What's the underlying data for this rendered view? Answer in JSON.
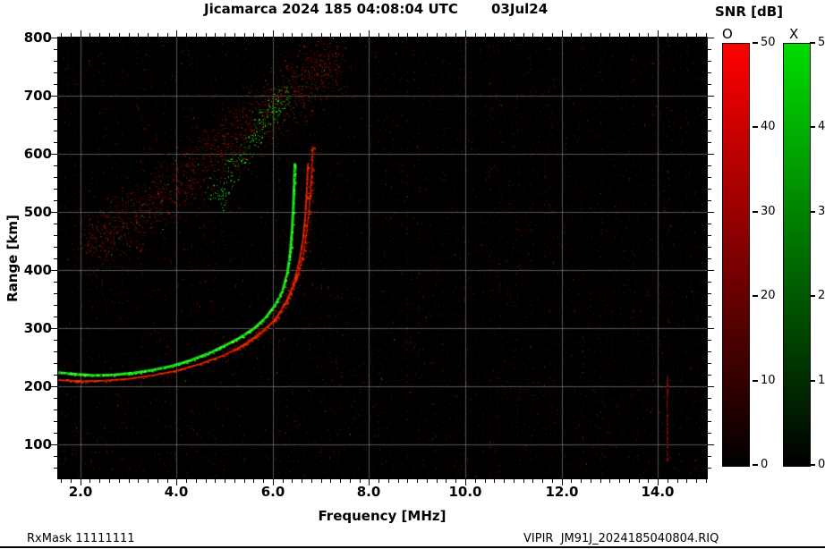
{
  "header": {
    "title": "Jicamarca 2024 185 04:08:04 UTC",
    "date": "03Jul24"
  },
  "footer": {
    "left": "RxMask 11111111",
    "right": "VIPIR  JM91J_2024185040804.RIQ"
  },
  "colorbar": {
    "title": "SNR [dB]",
    "o_label": "O",
    "x_label": "X",
    "min": 0,
    "max": 50,
    "ticks": [
      0,
      10,
      20,
      30,
      40,
      50
    ],
    "o_color": "#ff0000",
    "x_color": "#00dc00"
  },
  "chart_data": {
    "type": "heatmap",
    "title": "Jicamarca 2024 185 04:08:04 UTC  03Jul24",
    "xlabel": "Frequency [MHz]",
    "ylabel": "Range [km]",
    "xlim": [
      1.54,
      15.02
    ],
    "ylim": [
      42,
      800
    ],
    "x_major_ticks": [
      {
        "v": 2,
        "label": "2.0"
      },
      {
        "v": 4,
        "label": "4.0"
      },
      {
        "v": 6,
        "label": "6.0"
      },
      {
        "v": 8,
        "label": "8.0"
      },
      {
        "v": 10,
        "label": "10.0"
      },
      {
        "v": 12,
        "label": "12.0"
      },
      {
        "v": 14,
        "label": "14.0"
      }
    ],
    "x_minor_step": 0.2,
    "y_major_ticks": [
      {
        "v": 100,
        "label": "100"
      },
      {
        "v": 200,
        "label": "200"
      },
      {
        "v": 300,
        "label": "300"
      },
      {
        "v": 400,
        "label": "400"
      },
      {
        "v": 500,
        "label": "500"
      },
      {
        "v": 600,
        "label": "600"
      },
      {
        "v": 700,
        "label": "700"
      },
      {
        "v": 800,
        "label": "800"
      }
    ],
    "y_minor_step": 20,
    "grid": true,
    "grid_color": "rgba(145,145,145,0.6)",
    "bg": "#000000",
    "series": [
      {
        "name": "O-mode trace outer",
        "mode": "O",
        "color": "#b51700",
        "bright": "#ff3c00",
        "width": 1.6,
        "points": [
          [
            5.2,
            261
          ],
          [
            5.6,
            284
          ],
          [
            6.0,
            311
          ],
          [
            6.3,
            347
          ],
          [
            6.5,
            384
          ],
          [
            6.63,
            424
          ],
          [
            6.71,
            469
          ],
          [
            6.77,
            519
          ],
          [
            6.81,
            568
          ],
          [
            6.83,
            612
          ]
        ]
      },
      {
        "name": "O-mode trace main",
        "mode": "O",
        "color": "#d81e00",
        "bright": "#ff3c00",
        "width": 2,
        "points": [
          [
            1.54,
            211
          ],
          [
            2.0,
            209
          ],
          [
            2.5,
            210
          ],
          [
            3.0,
            213
          ],
          [
            3.5,
            219
          ],
          [
            4.0,
            227
          ],
          [
            4.5,
            239
          ],
          [
            5.0,
            254
          ],
          [
            5.4,
            271
          ],
          [
            5.8,
            294
          ],
          [
            6.1,
            320
          ],
          [
            6.3,
            349
          ],
          [
            6.45,
            381
          ],
          [
            6.55,
            414
          ],
          [
            6.63,
            453
          ],
          [
            6.68,
            498
          ],
          [
            6.71,
            543
          ],
          [
            6.73,
            582
          ]
        ]
      },
      {
        "name": "X-mode trace",
        "mode": "X",
        "color": "#15e515",
        "bright": "#62ff4e",
        "width": 3,
        "points": [
          [
            1.54,
            224
          ],
          [
            1.9,
            221
          ],
          [
            2.3,
            219
          ],
          [
            2.7,
            220
          ],
          [
            3.1,
            223
          ],
          [
            3.5,
            228
          ],
          [
            3.9,
            235
          ],
          [
            4.3,
            245
          ],
          [
            4.7,
            258
          ],
          [
            5.0,
            270
          ],
          [
            5.3,
            283
          ],
          [
            5.6,
            299
          ],
          [
            5.85,
            318
          ],
          [
            6.05,
            340
          ],
          [
            6.2,
            364
          ],
          [
            6.3,
            393
          ],
          [
            6.36,
            428
          ],
          [
            6.4,
            468
          ],
          [
            6.43,
            515
          ],
          [
            6.45,
            562
          ],
          [
            6.46,
            582
          ]
        ]
      }
    ],
    "spread_echoes": {
      "center": [
        [
          2.1,
          438
        ],
        [
          2.7,
          467
        ],
        [
          3.3,
          501
        ],
        [
          3.9,
          539
        ],
        [
          4.5,
          579
        ],
        [
          5.1,
          621
        ],
        [
          5.7,
          663
        ],
        [
          6.3,
          703
        ],
        [
          6.9,
          739
        ],
        [
          7.4,
          763
        ]
      ],
      "sigma_km": 38,
      "f_jitter": 0.18,
      "n": 2200,
      "green_fraction": 0.05
    },
    "spread_green": {
      "center": [
        [
          4.75,
          505
        ],
        [
          5.05,
          552
        ],
        [
          5.35,
          595
        ],
        [
          5.7,
          640
        ],
        [
          6.0,
          674
        ],
        [
          6.3,
          704
        ]
      ],
      "sigma_km": 18,
      "f_jitter": 0.1,
      "n": 240
    },
    "trace_fuzz": {
      "center": [
        [
          5.0,
          258
        ],
        [
          5.6,
          286
        ],
        [
          6.0,
          314
        ],
        [
          6.3,
          350
        ],
        [
          6.5,
          388
        ],
        [
          6.65,
          430
        ],
        [
          6.72,
          475
        ],
        [
          6.78,
          525
        ],
        [
          6.82,
          575
        ],
        [
          6.84,
          615
        ]
      ],
      "sigma_km": 12,
      "f_jitter": 0.05,
      "n": 420
    },
    "rfi_line": {
      "f": 14.2,
      "h_min": 73,
      "h_max": 219
    },
    "noise": {
      "seed": 1234567,
      "base_per_col": 13,
      "streak_prob": 0.15,
      "green_fraction": 0.055
    }
  }
}
